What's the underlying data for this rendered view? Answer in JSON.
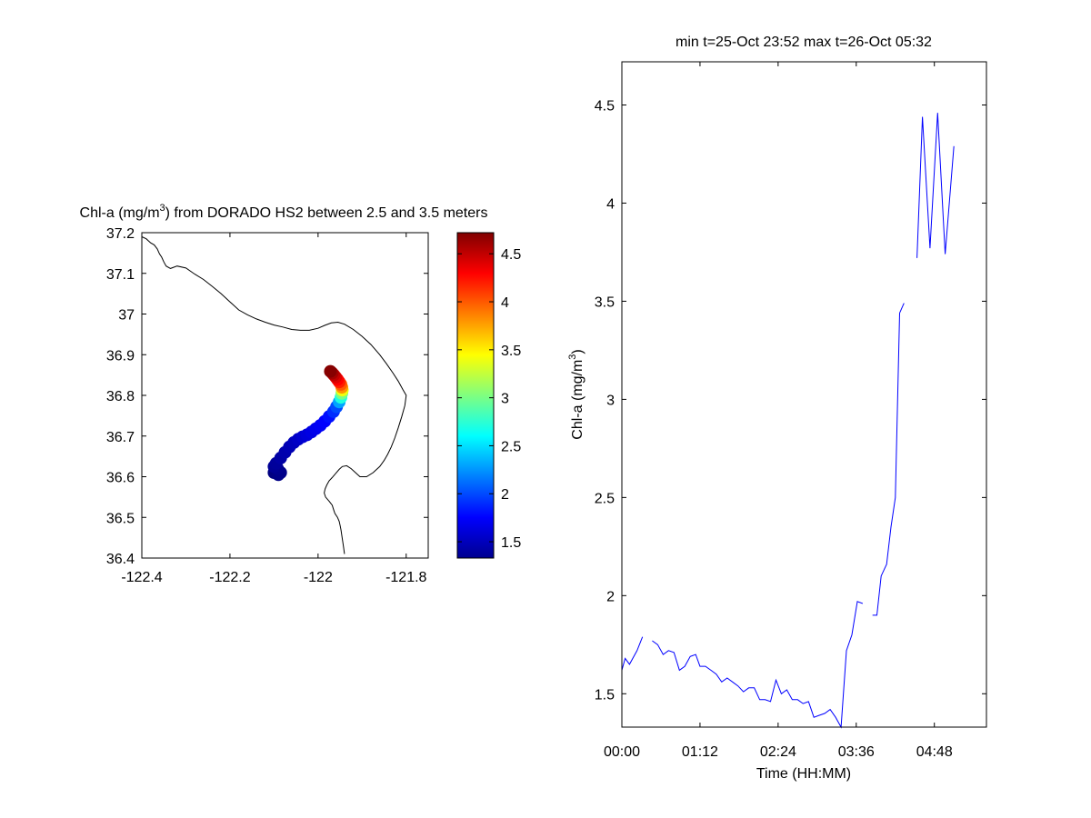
{
  "chart_data": [
    {
      "type": "scatter",
      "title": {
        "prefix": "Chl-a (mg/m",
        "sup": "3",
        "suffix": ") from DORADO HS2 between 2.5 and 3.5 meters"
      },
      "xlabel": "",
      "ylabel": "",
      "xlim": [
        -122.4,
        -121.75
      ],
      "ylim": [
        36.4,
        37.2
      ],
      "x_ticks": [
        -122.4,
        -122.2,
        -122.0,
        -121.8
      ],
      "x_tick_labels": [
        "-122.4",
        "-122.2",
        "-122",
        "-121.8"
      ],
      "y_ticks": [
        36.4,
        36.5,
        36.6,
        36.7,
        36.8,
        36.9,
        37.0,
        37.1,
        37.2
      ],
      "y_tick_labels": [
        "36.4",
        "36.5",
        "36.6",
        "36.7",
        "36.8",
        "36.9",
        "37",
        "37.1",
        "37.2"
      ],
      "grid": false,
      "colormap": "jet",
      "colorbar": {
        "clim": [
          1.33,
          4.72
        ],
        "ticks": [
          1.5,
          2,
          2.5,
          3,
          3.5,
          4,
          4.5
        ],
        "tick_labels": [
          "1.5",
          "2",
          "2.5",
          "3",
          "3.5",
          "4",
          "4.5"
        ]
      },
      "coastline": {
        "color": "#000000",
        "lon": [
          -122.4,
          -122.39,
          -122.38,
          -122.372,
          -122.365,
          -122.36,
          -122.355,
          -122.35,
          -122.345,
          -122.335,
          -122.32,
          -122.3,
          -122.28,
          -122.26,
          -122.24,
          -122.22,
          -122.2,
          -122.18,
          -122.16,
          -122.14,
          -122.12,
          -122.1,
          -122.08,
          -122.06,
          -122.04,
          -122.02,
          -122.0,
          -121.985,
          -121.97,
          -121.955,
          -121.94,
          -121.92,
          -121.9,
          -121.88,
          -121.86,
          -121.845,
          -121.83,
          -121.818,
          -121.808,
          -121.8,
          -121.803,
          -121.81,
          -121.818,
          -121.826,
          -121.834,
          -121.842,
          -121.85,
          -121.86,
          -121.875,
          -121.89,
          -121.905,
          -121.915,
          -121.925,
          -121.935,
          -121.945,
          -121.952,
          -121.96,
          -121.968,
          -121.975,
          -121.98,
          -121.984,
          -121.986,
          -121.983,
          -121.975,
          -121.968,
          -121.965,
          -121.962,
          -121.956,
          -121.952,
          -121.95,
          -121.948,
          -121.946,
          -121.944,
          -121.942,
          -121.94
        ],
        "lat": [
          37.19,
          37.185,
          37.175,
          37.17,
          37.16,
          37.148,
          37.14,
          37.128,
          37.118,
          37.112,
          37.118,
          37.113,
          37.098,
          37.085,
          37.068,
          37.05,
          37.03,
          37.01,
          36.998,
          36.988,
          36.98,
          36.973,
          36.968,
          36.962,
          36.96,
          36.96,
          36.965,
          36.972,
          36.978,
          36.98,
          36.975,
          36.962,
          36.945,
          36.925,
          36.9,
          36.878,
          36.855,
          36.835,
          36.815,
          36.8,
          36.775,
          36.748,
          36.72,
          36.695,
          36.673,
          36.655,
          36.64,
          36.625,
          36.61,
          36.6,
          36.6,
          36.61,
          36.62,
          36.627,
          36.625,
          36.618,
          36.608,
          36.598,
          36.59,
          36.58,
          36.57,
          36.56,
          36.55,
          36.54,
          36.53,
          36.52,
          36.51,
          36.5,
          36.49,
          36.48,
          36.47,
          36.455,
          36.44,
          36.425,
          36.41
        ]
      },
      "track": {
        "lon": [
          -122.1,
          -122.09,
          -122.085,
          -122.092,
          -122.1,
          -122.095,
          -122.085,
          -122.075,
          -122.065,
          -122.055,
          -122.045,
          -122.035,
          -122.025,
          -122.015,
          -122.005,
          -121.995,
          -121.985,
          -121.975,
          -121.965,
          -121.958,
          -121.952,
          -121.948,
          -121.946,
          -121.945,
          -121.946,
          -121.948,
          -121.952,
          -121.956,
          -121.96,
          -121.964,
          -121.968,
          -121.972
        ],
        "lat": [
          36.61,
          36.605,
          36.61,
          36.62,
          36.625,
          36.633,
          36.646,
          36.66,
          36.673,
          36.684,
          36.692,
          36.698,
          36.703,
          36.71,
          36.718,
          36.726,
          36.736,
          36.748,
          36.76,
          36.772,
          36.784,
          36.795,
          36.805,
          36.813,
          36.82,
          36.827,
          36.833,
          36.839,
          36.845,
          36.85,
          36.855,
          36.859
        ],
        "values": [
          1.33,
          1.35,
          1.36,
          1.38,
          1.4,
          1.42,
          1.45,
          1.48,
          1.5,
          1.53,
          1.56,
          1.6,
          1.63,
          1.66,
          1.69,
          1.72,
          1.75,
          1.8,
          1.9,
          2.0,
          2.3,
          2.7,
          3.0,
          3.4,
          3.8,
          4.0,
          4.2,
          4.3,
          4.4,
          4.5,
          4.6,
          4.7
        ]
      }
    },
    {
      "type": "line",
      "title": "min t=25-Oct 23:52 max t=26-Oct 05:32",
      "xlabel": "Time (HH:MM)",
      "ylabel": {
        "prefix": "Chl-a (mg/m",
        "sup": "3",
        "suffix": ")"
      },
      "xlim": [
        "00:00",
        "05:36"
      ],
      "ylim": [
        1.33,
        4.72
      ],
      "x_ticks": [
        "00:00",
        "01:12",
        "02:24",
        "03:36",
        "04:48"
      ],
      "y_ticks": [
        1.5,
        2,
        2.5,
        3,
        3.5,
        4,
        4.5
      ],
      "y_tick_labels": [
        "1.5",
        "2",
        "2.5",
        "3",
        "3.5",
        "4",
        "4.5"
      ],
      "grid": false,
      "series_color": "#0000ff",
      "segments": [
        {
          "x": [
            "00:00",
            "00:03",
            "00:07",
            "00:14",
            "00:19"
          ],
          "y": [
            1.62,
            1.68,
            1.65,
            1.72,
            1.79
          ]
        },
        {
          "x": [
            "00:28",
            "00:33",
            "00:38",
            "00:43",
            "00:48",
            "00:53",
            "00:58",
            "01:03",
            "01:08",
            "01:12",
            "01:17",
            "01:22",
            "01:27",
            "01:32",
            "01:37",
            "01:42",
            "01:47",
            "01:52",
            "01:57",
            "02:02",
            "02:07",
            "02:12",
            "02:17",
            "02:22",
            "02:27",
            "02:32",
            "02:37",
            "02:42",
            "02:47",
            "02:52",
            "02:57",
            "03:02",
            "03:07",
            "03:12",
            "03:17",
            "03:22",
            "03:27",
            "03:32",
            "03:37",
            "03:42"
          ],
          "y": [
            1.77,
            1.75,
            1.7,
            1.72,
            1.71,
            1.62,
            1.64,
            1.69,
            1.7,
            1.64,
            1.64,
            1.62,
            1.6,
            1.56,
            1.58,
            1.56,
            1.54,
            1.51,
            1.53,
            1.53,
            1.47,
            1.47,
            1.46,
            1.57,
            1.5,
            1.52,
            1.47,
            1.47,
            1.45,
            1.46,
            1.38,
            1.39,
            1.4,
            1.42,
            1.38,
            1.33,
            1.72,
            1.8,
            1.97,
            1.96
          ]
        },
        {
          "x": [
            "03:51",
            "03:55",
            "03:59",
            "04:04",
            "04:08",
            "04:12",
            "04:16"
          ],
          "y": [
            1.9,
            1.9,
            2.1,
            2.16,
            2.35,
            2.5,
            3.44
          ]
        },
        {
          "x": [
            "04:16",
            "04:20"
          ],
          "y": [
            3.44,
            3.49
          ]
        },
        {
          "x": [
            "04:32",
            "04:37",
            "04:44",
            "04:51",
            "04:58",
            "05:06"
          ],
          "y": [
            3.72,
            4.44,
            3.77,
            4.46,
            3.74,
            4.29
          ]
        }
      ]
    }
  ]
}
